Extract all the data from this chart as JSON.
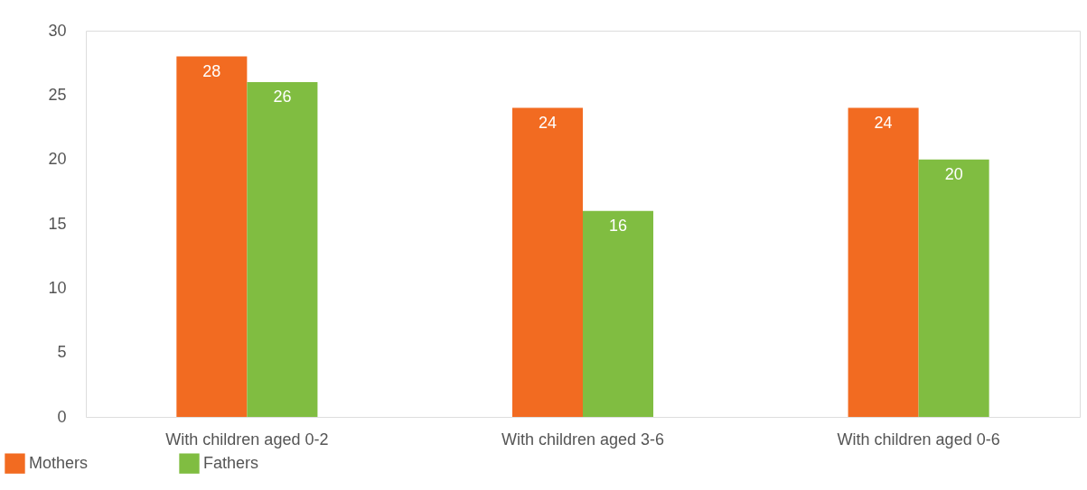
{
  "chart_data": {
    "type": "bar",
    "categories": [
      "With children aged 0-2",
      "With children aged 3-6",
      "With children aged 0-6"
    ],
    "series": [
      {
        "name": "Mothers",
        "color": "#f26b21",
        "values": [
          28,
          24,
          24
        ]
      },
      {
        "name": "Fathers",
        "color": "#80bd41",
        "values": [
          26,
          16,
          20
        ]
      }
    ],
    "ylim": [
      0,
      30
    ],
    "yticks": [
      0,
      5,
      10,
      15,
      20,
      25,
      30
    ],
    "grid": false,
    "legend": "bottom left",
    "data_labels": true
  }
}
